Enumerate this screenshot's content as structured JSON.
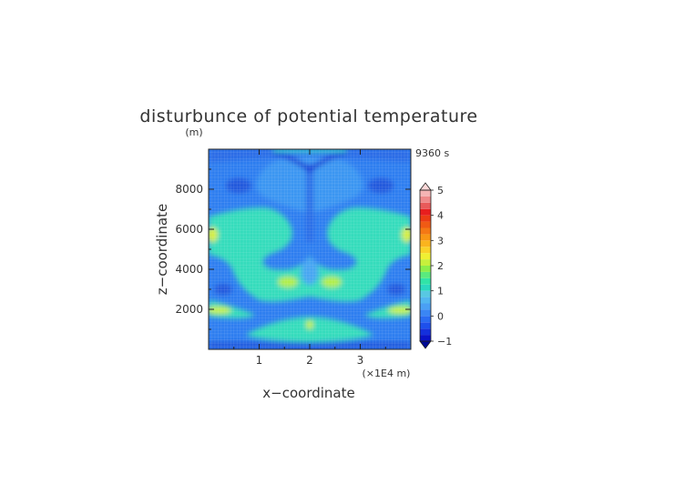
{
  "chart_data": {
    "type": "heatmap",
    "title": "disturbunce of potential temperature",
    "time_label": "9360 s",
    "xlabel": "x−coordinate",
    "ylabel": "z−coordinate",
    "y_unit": "(m)",
    "x_scale_note": "(×1E4 m)",
    "xlim": [
      0,
      4
    ],
    "ylim": [
      0,
      10000
    ],
    "x_ticks": [
      1,
      2,
      3
    ],
    "x_tick_labels": [
      "1",
      "2",
      "3"
    ],
    "y_ticks": [
      2000,
      4000,
      6000,
      8000
    ],
    "y_tick_labels": [
      "2000",
      "4000",
      "6000",
      "8000"
    ],
    "grid": true,
    "colorbar": {
      "min": -1,
      "max": 5,
      "step": 0.25,
      "tick_values": [
        -1,
        0,
        1,
        2,
        3,
        4,
        5
      ],
      "tick_labels": [
        "−1",
        "0",
        "1",
        "2",
        "3",
        "4",
        "5"
      ],
      "colors": [
        "#0a14c8",
        "#1430dc",
        "#1e50ec",
        "#2a6cf2",
        "#3a86f4",
        "#4aa0f4",
        "#52b6f0",
        "#58c8e2",
        "#2ad8c0",
        "#30e4a8",
        "#5aea7e",
        "#8cee4a",
        "#c8f03c",
        "#f0f032",
        "#fad228",
        "#fab41e",
        "#f89614",
        "#f47814",
        "#f05a14",
        "#ec3c14",
        "#e81e1e",
        "#e85a5a",
        "#ee8a8a",
        "#f4b4b4"
      ],
      "under_color": "#000a96",
      "over_color": "#ffd8d8"
    }
  }
}
